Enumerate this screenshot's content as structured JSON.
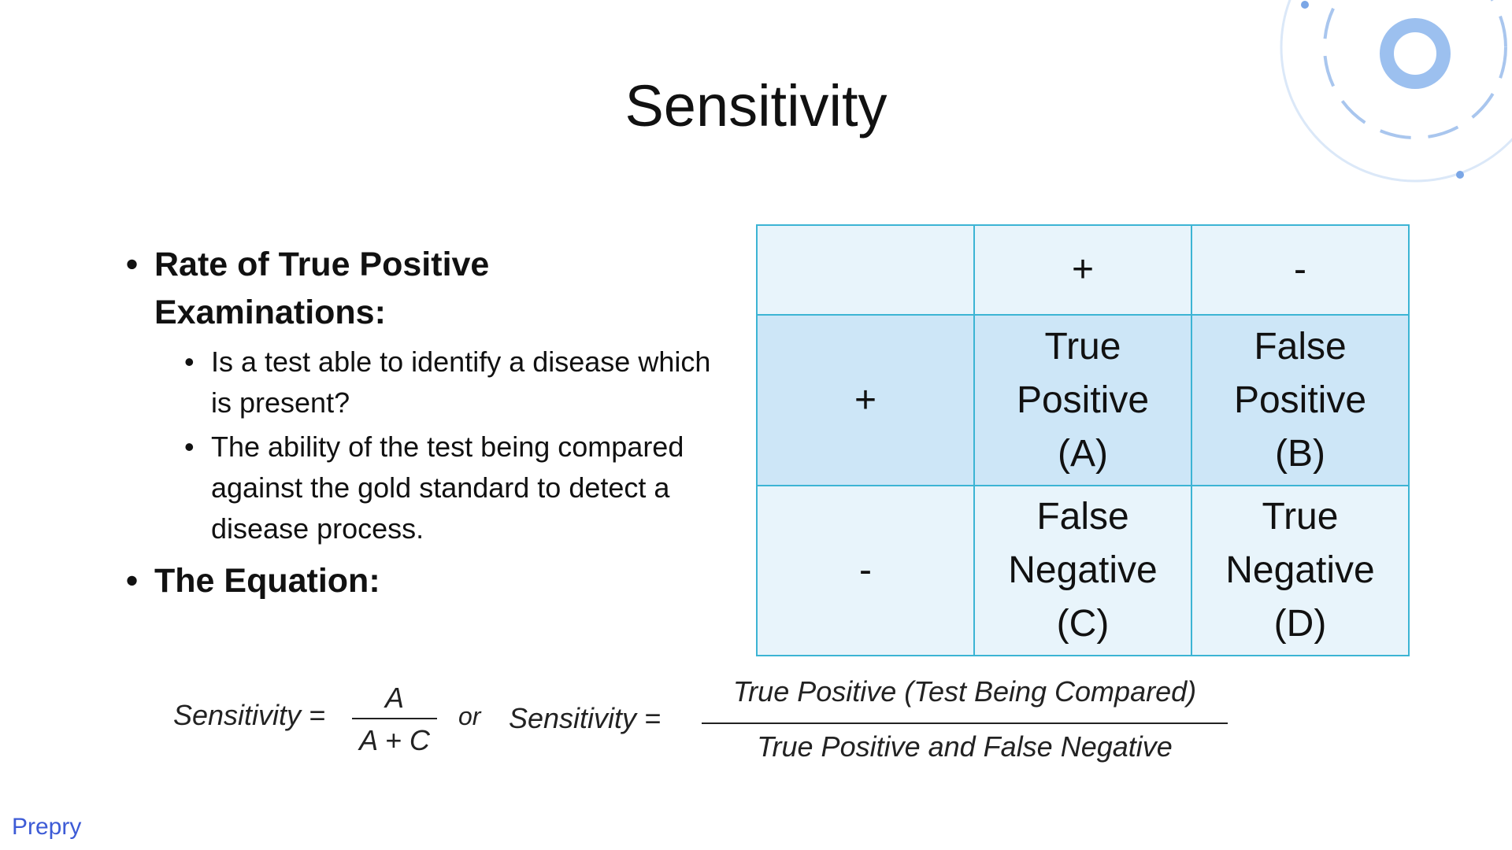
{
  "title": "Sensitivity",
  "bullets": [
    {
      "text": "Rate of True Positive Examinations:",
      "sub": [
        "Is a test able to identify a disease which is present?",
        "The ability of the test being compared against the gold standard to detect a disease process."
      ]
    },
    {
      "text": "The Equation:"
    }
  ],
  "table": {
    "rows": [
      [
        "",
        "+",
        "-"
      ],
      [
        "+",
        "True Positive (A)",
        "False Positive (B)"
      ],
      [
        "-",
        "False Negative (C)",
        "True Negative (D)"
      ]
    ]
  },
  "equation": {
    "left": {
      "label": "Sensitivity =",
      "numerator": "A",
      "denominator": "A + C"
    },
    "joiner": "or",
    "right": {
      "label": "Sensitivity =",
      "numerator": "True Positive (Test Being Compared)",
      "denominator": "True Positive and False Negative"
    }
  },
  "footer": "Prepry"
}
